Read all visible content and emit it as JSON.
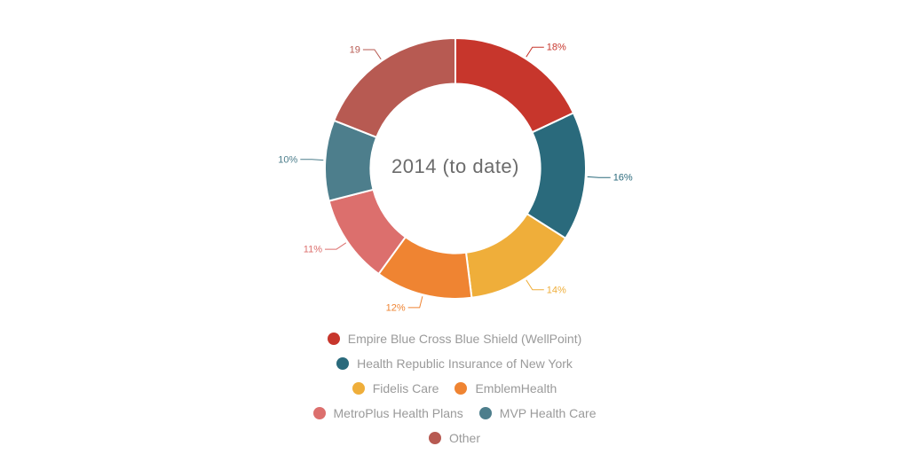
{
  "page": {
    "background_color": "#ffffff"
  },
  "chart_data": {
    "type": "pie",
    "variant": "donut",
    "center_title": "2014 (to date)",
    "title_color": "#6b6b6b",
    "legend_text_color": "#9a9a9a",
    "start_angle_deg": 0,
    "inner_radius_ratio": 0.65,
    "slices": [
      {
        "label": "Empire Blue Cross Blue Shield (WellPoint)",
        "value": 18,
        "display": "18%",
        "color": "#c7362c"
      },
      {
        "label": "Health Republic Insurance of New York",
        "value": 16,
        "display": "16%",
        "color": "#2a6a7c"
      },
      {
        "label": "Fidelis Care",
        "value": 14,
        "display": "14%",
        "color": "#efae3a"
      },
      {
        "label": "EmblemHealth",
        "value": 12,
        "display": "12%",
        "color": "#ef8432"
      },
      {
        "label": "MetroPlus Health Plans",
        "value": 11,
        "display": "11%",
        "color": "#dc6f6d"
      },
      {
        "label": "MVP Health Care",
        "value": 10,
        "display": "10%",
        "color": "#4d7e8c"
      },
      {
        "label": "Other",
        "value": 19,
        "display": "19",
        "color": "#b75a52"
      }
    ],
    "legend_rows": [
      [
        0
      ],
      [
        1
      ],
      [
        2,
        3
      ],
      [
        4,
        5
      ],
      [
        6
      ]
    ],
    "legend_position": "bottom"
  }
}
